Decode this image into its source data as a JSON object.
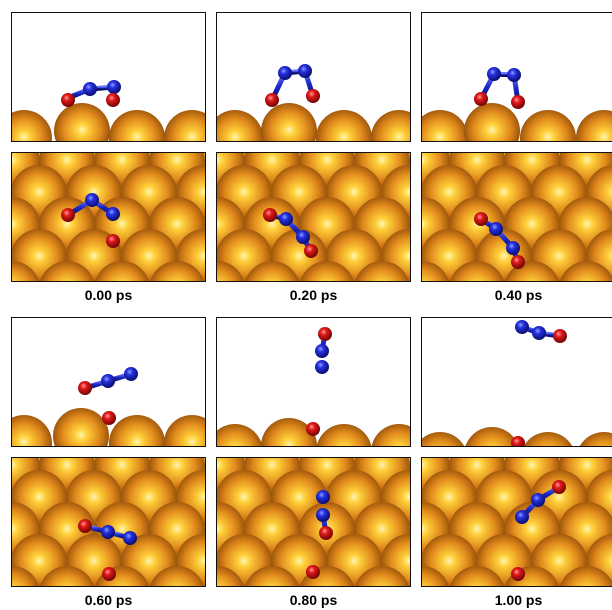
{
  "captions": [
    "0.00 ps",
    "0.20 ps",
    "0.40 ps",
    "0.60 ps",
    "0.80 ps",
    "1.00 ps"
  ],
  "colors": {
    "copper_base": "#d9851e",
    "copper_dark": "#8a4606",
    "copper_light": "#ffd24a",
    "nitrogen": "#1c22cc",
    "oxygen": "#d41414",
    "bond": "#1a28c8"
  },
  "atom_legend": {
    "copper": "Cu surface atoms (orange spheres)",
    "nitrogen": "N atoms (blue)",
    "oxygen": "O atoms (red)"
  }
}
